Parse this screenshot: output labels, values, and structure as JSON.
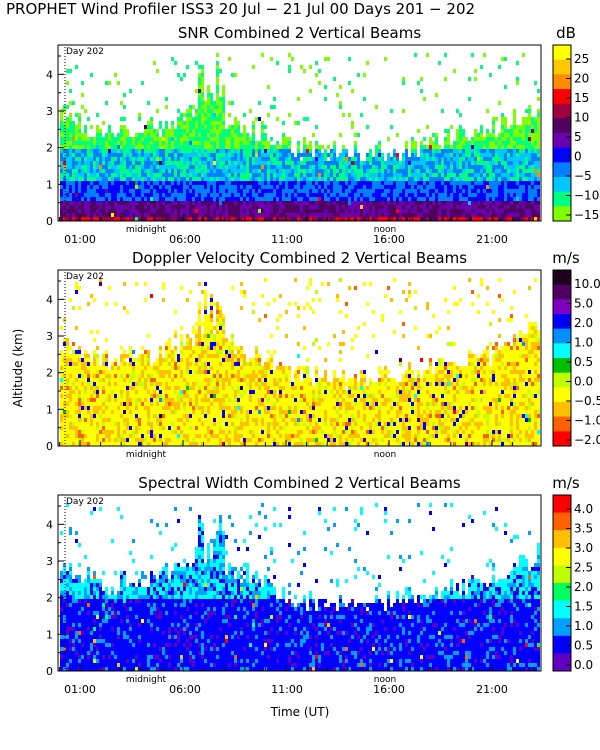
{
  "title": "PROPHET Wind Profiler ISS3  20 Jul − 21 Jul 00 Days 201 − 202",
  "y_axis_label": "Altitude (km)",
  "x_axis_label": "Time (UT)",
  "day_marker_label": "Day 202",
  "chart_data": [
    {
      "type": "heatmap",
      "title": "SNR Combined 2 Vertical Beams",
      "unit": "dB",
      "x_tick_labels": [
        "01:00",
        "06:00",
        "11:00",
        "16:00",
        "21:00"
      ],
      "x_markers": [
        "midnight",
        "noon"
      ],
      "y_tick_labels": [
        "0",
        "1",
        "2",
        "3",
        "4"
      ],
      "ylim": [
        0,
        4.8
      ],
      "colorbar": {
        "labels": [
          "25",
          "20",
          "15",
          "10",
          "5",
          "0",
          "−5",
          "−10",
          "−15"
        ],
        "colors": [
          "#ffff00",
          "#ffc800",
          "#ff8c00",
          "#ff0000",
          "#a00040",
          "#500060",
          "#6a00b0",
          "#0000ff",
          "#0080ff",
          "#00c8ff",
          "#00ff80",
          "#80ff00"
        ]
      }
    },
    {
      "type": "heatmap",
      "title": "Doppler Velocity Combined 2 Vertical Beams",
      "unit": "m/s",
      "x_tick_labels": [],
      "x_markers": [
        "midnight",
        "noon"
      ],
      "y_tick_labels": [
        "0",
        "1",
        "2",
        "3",
        "4"
      ],
      "ylim": [
        0,
        4.8
      ],
      "colorbar": {
        "labels": [
          "10.0",
          "5.0",
          "2.0",
          "1.0",
          "0.5",
          "0.0",
          "−0.5",
          "−1.0",
          "−2.0"
        ],
        "colors": [
          "#200020",
          "#500060",
          "#8000c0",
          "#0000ff",
          "#0090ff",
          "#00ffff",
          "#00c000",
          "#c0ff00",
          "#ffff00",
          "#ffc000",
          "#ff6000",
          "#ff0000"
        ]
      }
    },
    {
      "type": "heatmap",
      "title": "Spectral Width Combined 2 Vertical Beams",
      "unit": "m/s",
      "x_tick_labels": [
        "01:00",
        "06:00",
        "11:00",
        "16:00",
        "21:00"
      ],
      "x_markers": [
        "midnight",
        "noon"
      ],
      "y_tick_labels": [
        "0",
        "1",
        "2",
        "3",
        "4"
      ],
      "ylim": [
        0,
        4.8
      ],
      "colorbar": {
        "labels": [
          "4.0",
          "3.5",
          "3.0",
          "2.5",
          "2.0",
          "1.5",
          "1.0",
          "0.5",
          "0.0"
        ],
        "colors": [
          "#ff0000",
          "#ff6000",
          "#ffc000",
          "#ffff00",
          "#c0ff00",
          "#00ff60",
          "#00ffff",
          "#00a0ff",
          "#0000ff",
          "#6000c0"
        ]
      }
    }
  ]
}
